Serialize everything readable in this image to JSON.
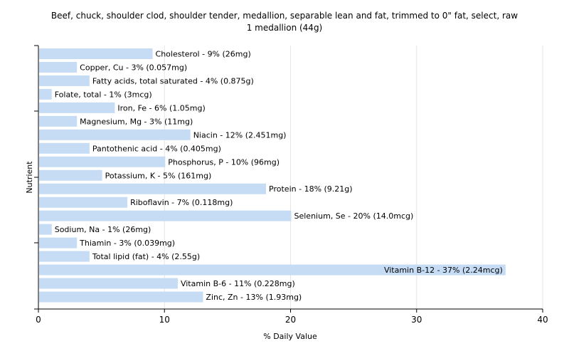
{
  "chart_data": {
    "type": "bar",
    "orientation": "horizontal",
    "title": "Beef, chuck, shoulder clod, shoulder tender, medallion, separable lean and fat, trimmed to 0\" fat, select, raw",
    "subtitle": "1 medallion (44g)",
    "xlabel": "% Daily Value",
    "ylabel": "Nutrient",
    "xlim": [
      0,
      40
    ],
    "xticks": [
      0,
      10,
      20,
      30,
      40
    ],
    "grid": "vertical",
    "bar_color": "#c6dcf5",
    "categories": [
      "Cholesterol",
      "Copper, Cu",
      "Fatty acids, total saturated",
      "Folate, total",
      "Iron, Fe",
      "Magnesium, Mg",
      "Niacin",
      "Pantothenic acid",
      "Phosphorus, P",
      "Potassium, K",
      "Protein",
      "Riboflavin",
      "Selenium, Se",
      "Sodium, Na",
      "Thiamin",
      "Total lipid (fat)",
      "Vitamin B-12",
      "Vitamin B-6",
      "Zinc, Zn"
    ],
    "values": [
      9,
      3,
      4,
      1,
      6,
      3,
      12,
      4,
      10,
      5,
      18,
      7,
      20,
      1,
      3,
      4,
      37,
      11,
      13
    ],
    "labels": [
      "Cholesterol - 9% (26mg)",
      "Copper, Cu - 3% (0.057mg)",
      "Fatty acids, total saturated - 4% (0.875g)",
      "Folate, total - 1% (3mcg)",
      "Iron, Fe - 6% (1.05mg)",
      "Magnesium, Mg - 3% (11mg)",
      "Niacin - 12% (2.451mg)",
      "Pantothenic acid - 4% (0.405mg)",
      "Phosphorus, P - 10% (96mg)",
      "Potassium, K - 5% (161mg)",
      "Protein - 18% (9.21g)",
      "Riboflavin - 7% (0.118mg)",
      "Selenium, Se - 20% (14.0mcg)",
      "Sodium, Na - 1% (26mg)",
      "Thiamin - 3% (0.039mg)",
      "Total lipid (fat) - 4% (2.55g)",
      "Vitamin B-12 - 37% (2.24mcg)",
      "Vitamin B-6 - 11% (0.228mg)",
      "Zinc, Zn - 13% (1.93mg)"
    ]
  }
}
